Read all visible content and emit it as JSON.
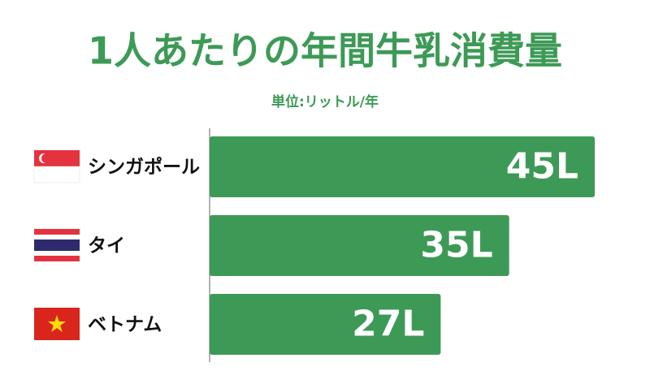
{
  "chart_data": {
    "type": "bar",
    "orientation": "horizontal",
    "title": "1人あたりの年間牛乳消費量",
    "subtitle": "単位:リットル/年",
    "categories": [
      "シンガポール",
      "タイ",
      "ベトナム"
    ],
    "values": [
      45,
      35,
      27
    ],
    "value_labels": [
      "45L",
      "35L",
      "27L"
    ],
    "color": "#3d9a56"
  }
}
